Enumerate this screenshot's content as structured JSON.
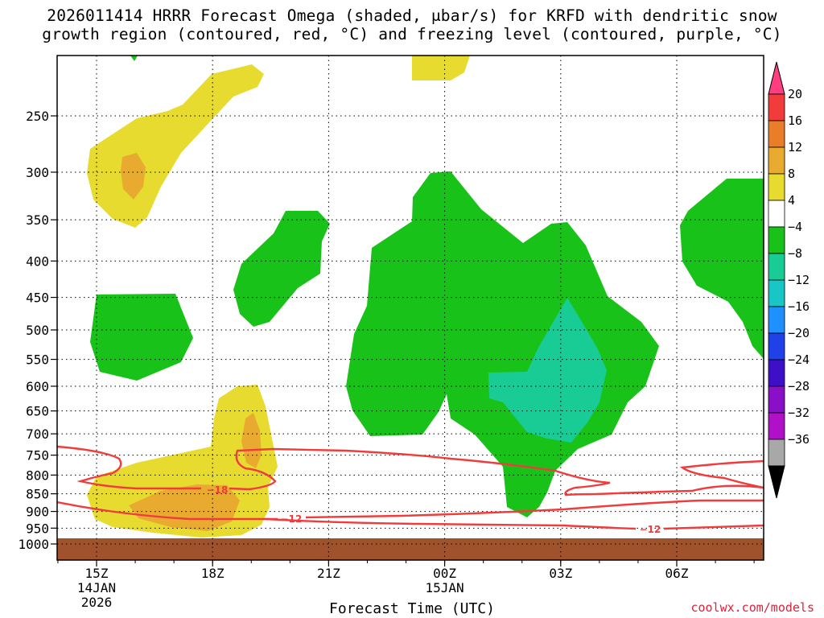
{
  "title": {
    "line1": "2026011414 HRRR Forecast Omega (shaded, μbar/s) for KRFD with dendritic snow",
    "line2": "growth region (contoured, red, °C) and freezing level (contoured, purple, °C)"
  },
  "credit": "coolwx.com/models",
  "chart_data": {
    "type": "area",
    "title": "2026011414 HRRR Forecast Omega (shaded, μbar/s) for KRFD with dendritic snow growth region (contoured, red, °C) and freezing level (contoured, purple, °C)",
    "xlabel": "Forecast Time (UTC)",
    "ylabel": "",
    "x_range_hours_utc": [
      "2026-01-14 14Z",
      "2026-01-15 08Z"
    ],
    "x_ticks": [
      {
        "label": "15Z",
        "sub": [
          "14JAN",
          "2026"
        ]
      },
      {
        "label": "18Z",
        "sub": []
      },
      {
        "label": "21Z",
        "sub": []
      },
      {
        "label": "00Z",
        "sub": [
          "15JAN"
        ]
      },
      {
        "label": "03Z",
        "sub": []
      },
      {
        "label": "06Z",
        "sub": []
      }
    ],
    "y_axis_scale": "log-pressure (hPa), inverted",
    "y_ticks": [
      "250",
      "300",
      "350",
      "400",
      "450",
      "500",
      "550",
      "600",
      "650",
      "700",
      "750",
      "800",
      "850",
      "900",
      "950",
      "1000"
    ],
    "y_tick_values": [
      250,
      300,
      350,
      400,
      450,
      500,
      550,
      600,
      650,
      700,
      750,
      800,
      850,
      900,
      950,
      1000
    ],
    "grid": true,
    "colorbar": {
      "units": "μbar/s",
      "labels": [
        "20",
        "16",
        "12",
        "8",
        "4",
        "−4",
        "−8",
        "−12",
        "−16",
        "−20",
        "−24",
        "−28",
        "−32",
        "−36"
      ],
      "colors": [
        "#ff3d7f",
        "#f23c3c",
        "#ea7d28",
        "#e8ab30",
        "#e8db30",
        "#ffffff",
        "#19c219",
        "#19cc96",
        "#19c6c6",
        "#1e90ff",
        "#2040e8",
        "#3d10c8",
        "#8a10c8",
        "#b010c8",
        "#a8a8a8",
        "#000000"
      ]
    },
    "shaded_regions": [
      {
        "range": "4 to 8",
        "color": "#e8db30"
      },
      {
        "range": "8 to 12",
        "color": "#e8ab30"
      },
      {
        "range": "−4 to −8",
        "color": "#19c219"
      },
      {
        "range": "−8 to −12",
        "color": "#19cc96"
      }
    ],
    "contours": [
      {
        "label": "−18",
        "color": "#f03c3c"
      },
      {
        "label": "−12",
        "color": "#f03c3c"
      },
      {
        "label": "−12",
        "color": "#f03c3c"
      }
    ],
    "ground": {
      "color": "#a0522d"
    }
  }
}
